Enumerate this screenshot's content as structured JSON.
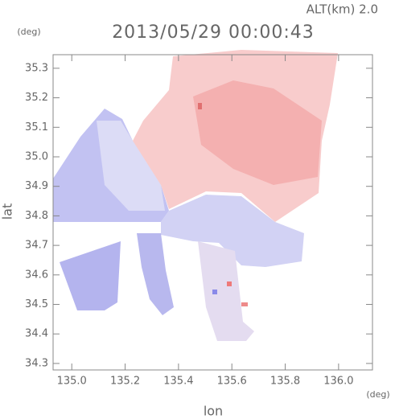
{
  "chart_data": {
    "type": "image",
    "title": "2013/05/29 00:00:43",
    "subtitle": "ALT(km) 2.0",
    "x_label": "lon",
    "y_label": "lat",
    "x_unit": "(deg)",
    "y_unit": "(deg)",
    "xlim": [
      134.93,
      136.127
    ],
    "ylim": [
      34.278,
      35.346
    ],
    "xticks": [
      {
        "value": 135,
        "label": "135.0"
      },
      135.2,
      135.4,
      135.6,
      135.8,
      {
        "value": 136,
        "label": "136.0"
      }
    ],
    "yticks": [
      34.3,
      34.4,
      34.5,
      34.6,
      34.7,
      34.8,
      34.9,
      {
        "value": 35,
        "label": "35.0"
      },
      35.1,
      35.2,
      35.3
    ]
  }
}
